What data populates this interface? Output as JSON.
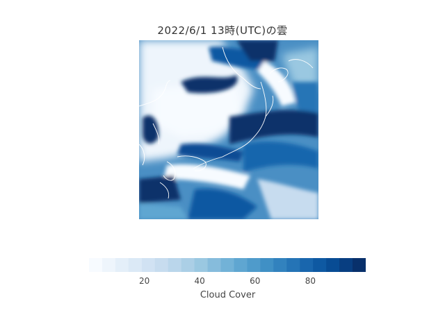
{
  "title": "2022/6/1 13時(UTC)の雲",
  "colorbar": {
    "title": "Cloud Cover",
    "range": [
      0,
      100
    ],
    "tick_labels": [
      "20",
      "40",
      "60",
      "80"
    ],
    "tick_values": [
      20,
      40,
      60,
      80
    ],
    "colormap": "Blues",
    "colors": [
      "#f7fbff",
      "#eef5fc",
      "#e4eff9",
      "#dbe9f6",
      "#d1e2f3",
      "#c7dcef",
      "#bad6eb",
      "#abcfe6",
      "#9ac8e1",
      "#86bcdc",
      "#72b2d7",
      "#5fa6d1",
      "#4f9bcb",
      "#4090c5",
      "#3282be",
      "#2574b6",
      "#1966ad",
      "#0e59a2",
      "#084c94",
      "#083e81",
      "#08306b"
    ]
  },
  "map": {
    "region": "Japan and surrounding area",
    "land_outline_color": "#ffffff"
  }
}
